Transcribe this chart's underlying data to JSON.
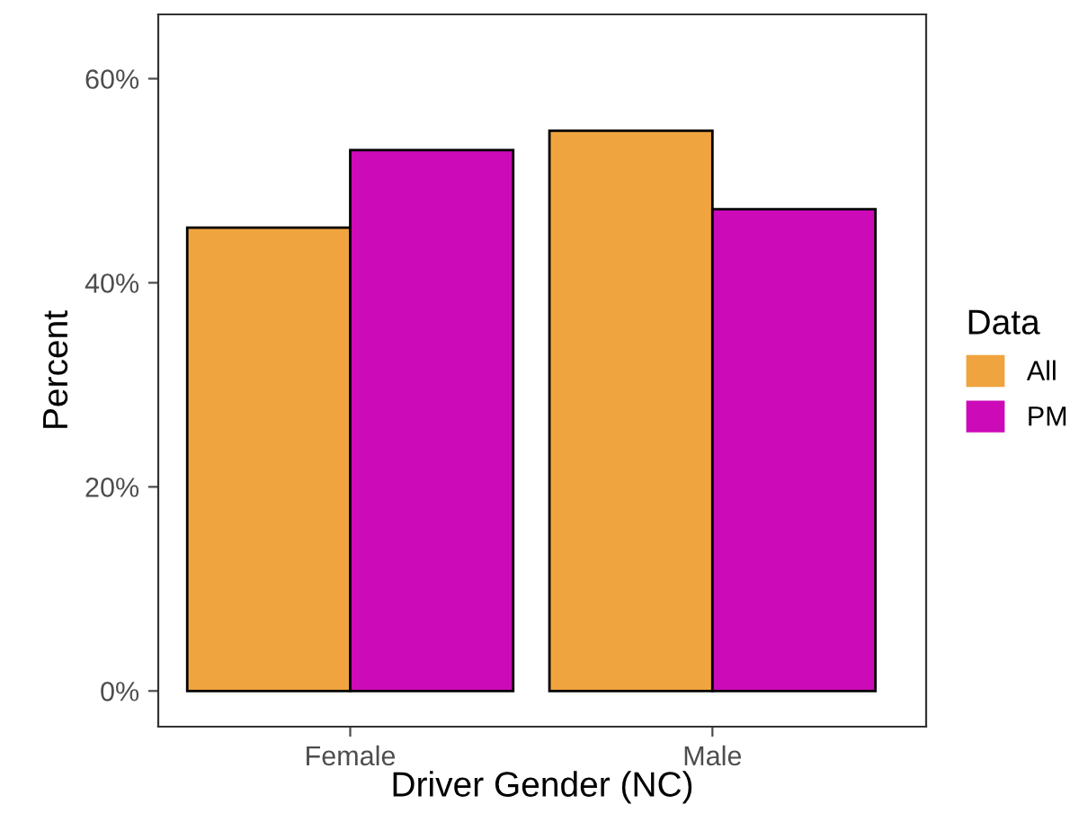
{
  "chart_data": {
    "type": "bar",
    "xlabel": "Driver Gender (NC)",
    "ylabel": "Percent",
    "legend_title": "Data",
    "legend": "right",
    "categories": [
      "Female",
      "Male"
    ],
    "series": [
      {
        "name": "All",
        "color": "#f0a43f",
        "values": [
          45.4,
          54.9
        ]
      },
      {
        "name": "PM",
        "color": "#cc0ab8",
        "values": [
          53.0,
          47.2
        ]
      }
    ],
    "ylim": [
      -3.5,
      66.3
    ],
    "yticks": [
      {
        "value": 0,
        "label": "0%"
      },
      {
        "value": 20,
        "label": "20%"
      },
      {
        "value": 40,
        "label": "40%"
      },
      {
        "value": 60,
        "label": "60%"
      }
    ],
    "grid": false
  }
}
